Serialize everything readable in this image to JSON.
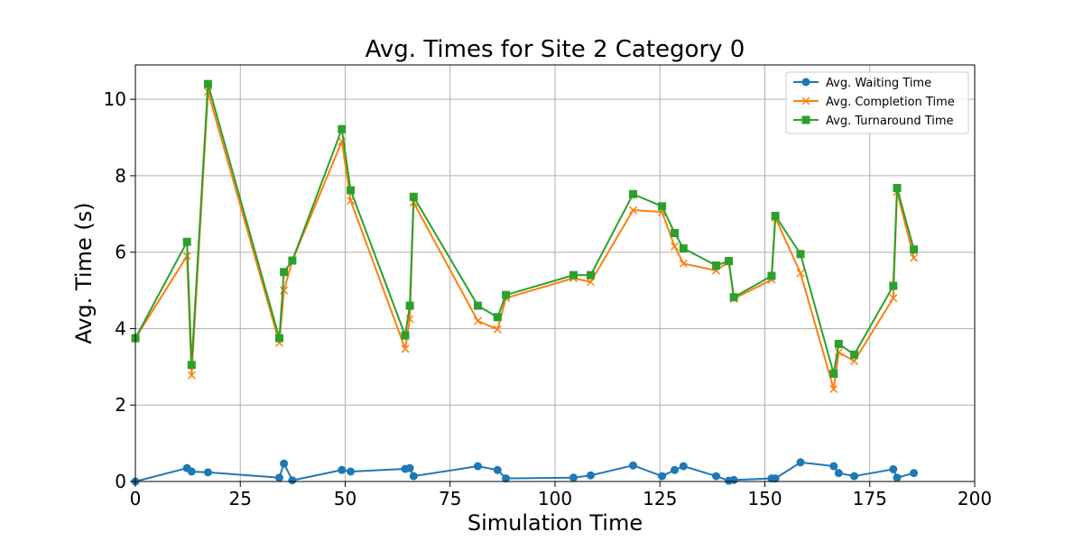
{
  "chart_data": {
    "type": "line",
    "title": "Avg. Times for Site 2 Category 0",
    "xlabel": "Simulation Time",
    "ylabel": "Avg. Time (s)",
    "xlim": [
      0,
      200
    ],
    "ylim": [
      0,
      10.9
    ],
    "xticks": [
      "0",
      "25",
      "50",
      "75",
      "100",
      "125",
      "150",
      "175",
      "200"
    ],
    "yticks": [
      "0",
      "2",
      "4",
      "6",
      "8",
      "10"
    ],
    "grid": true,
    "legend_position": "top-right",
    "x": [
      0,
      12.3,
      13.4,
      17.3,
      34.3,
      35.4,
      37.4,
      49.2,
      51.3,
      64.3,
      65.4,
      66.3,
      81.6,
      86.3,
      88.3,
      104.4,
      108.5,
      118.6,
      125.5,
      128.5,
      130.6,
      138.4,
      141.4,
      142.6,
      151.6,
      152.5,
      158.5,
      166.4,
      167.6,
      171.3,
      180.6,
      181.5,
      185.5
    ],
    "series": [
      {
        "name": "Avg. Waiting Time",
        "color": "#1f77b4",
        "marker": "circle",
        "values": [
          0.0,
          0.35,
          0.26,
          0.24,
          0.1,
          0.47,
          0.03,
          0.3,
          0.26,
          0.33,
          0.35,
          0.14,
          0.4,
          0.3,
          0.08,
          0.1,
          0.16,
          0.42,
          0.14,
          0.3,
          0.4,
          0.14,
          0.02,
          0.04,
          0.08,
          0.08,
          0.5,
          0.4,
          0.22,
          0.14,
          0.32,
          0.1,
          0.22
        ]
      },
      {
        "name": "Avg. Completion Time",
        "color": "#ff7f0e",
        "marker": "x",
        "values": [
          3.75,
          5.9,
          2.78,
          10.2,
          3.63,
          5.0,
          5.78,
          8.9,
          7.35,
          3.47,
          4.25,
          7.3,
          4.2,
          3.98,
          4.8,
          5.32,
          5.22,
          7.1,
          7.05,
          6.15,
          5.7,
          5.52,
          5.75,
          4.78,
          5.28,
          6.9,
          5.45,
          2.42,
          3.38,
          3.15,
          4.8,
          7.58,
          5.85
        ]
      },
      {
        "name": "Avg. Turnaround Time",
        "color": "#2ca02c",
        "marker": "square",
        "values": [
          3.75,
          6.27,
          3.05,
          10.4,
          3.75,
          5.48,
          5.78,
          9.22,
          7.62,
          3.82,
          4.6,
          7.45,
          4.6,
          4.3,
          4.88,
          5.4,
          5.4,
          7.52,
          7.2,
          6.5,
          6.1,
          5.65,
          5.77,
          4.82,
          5.38,
          6.95,
          5.95,
          2.82,
          3.6,
          3.32,
          5.12,
          7.68,
          6.07
        ]
      }
    ]
  }
}
